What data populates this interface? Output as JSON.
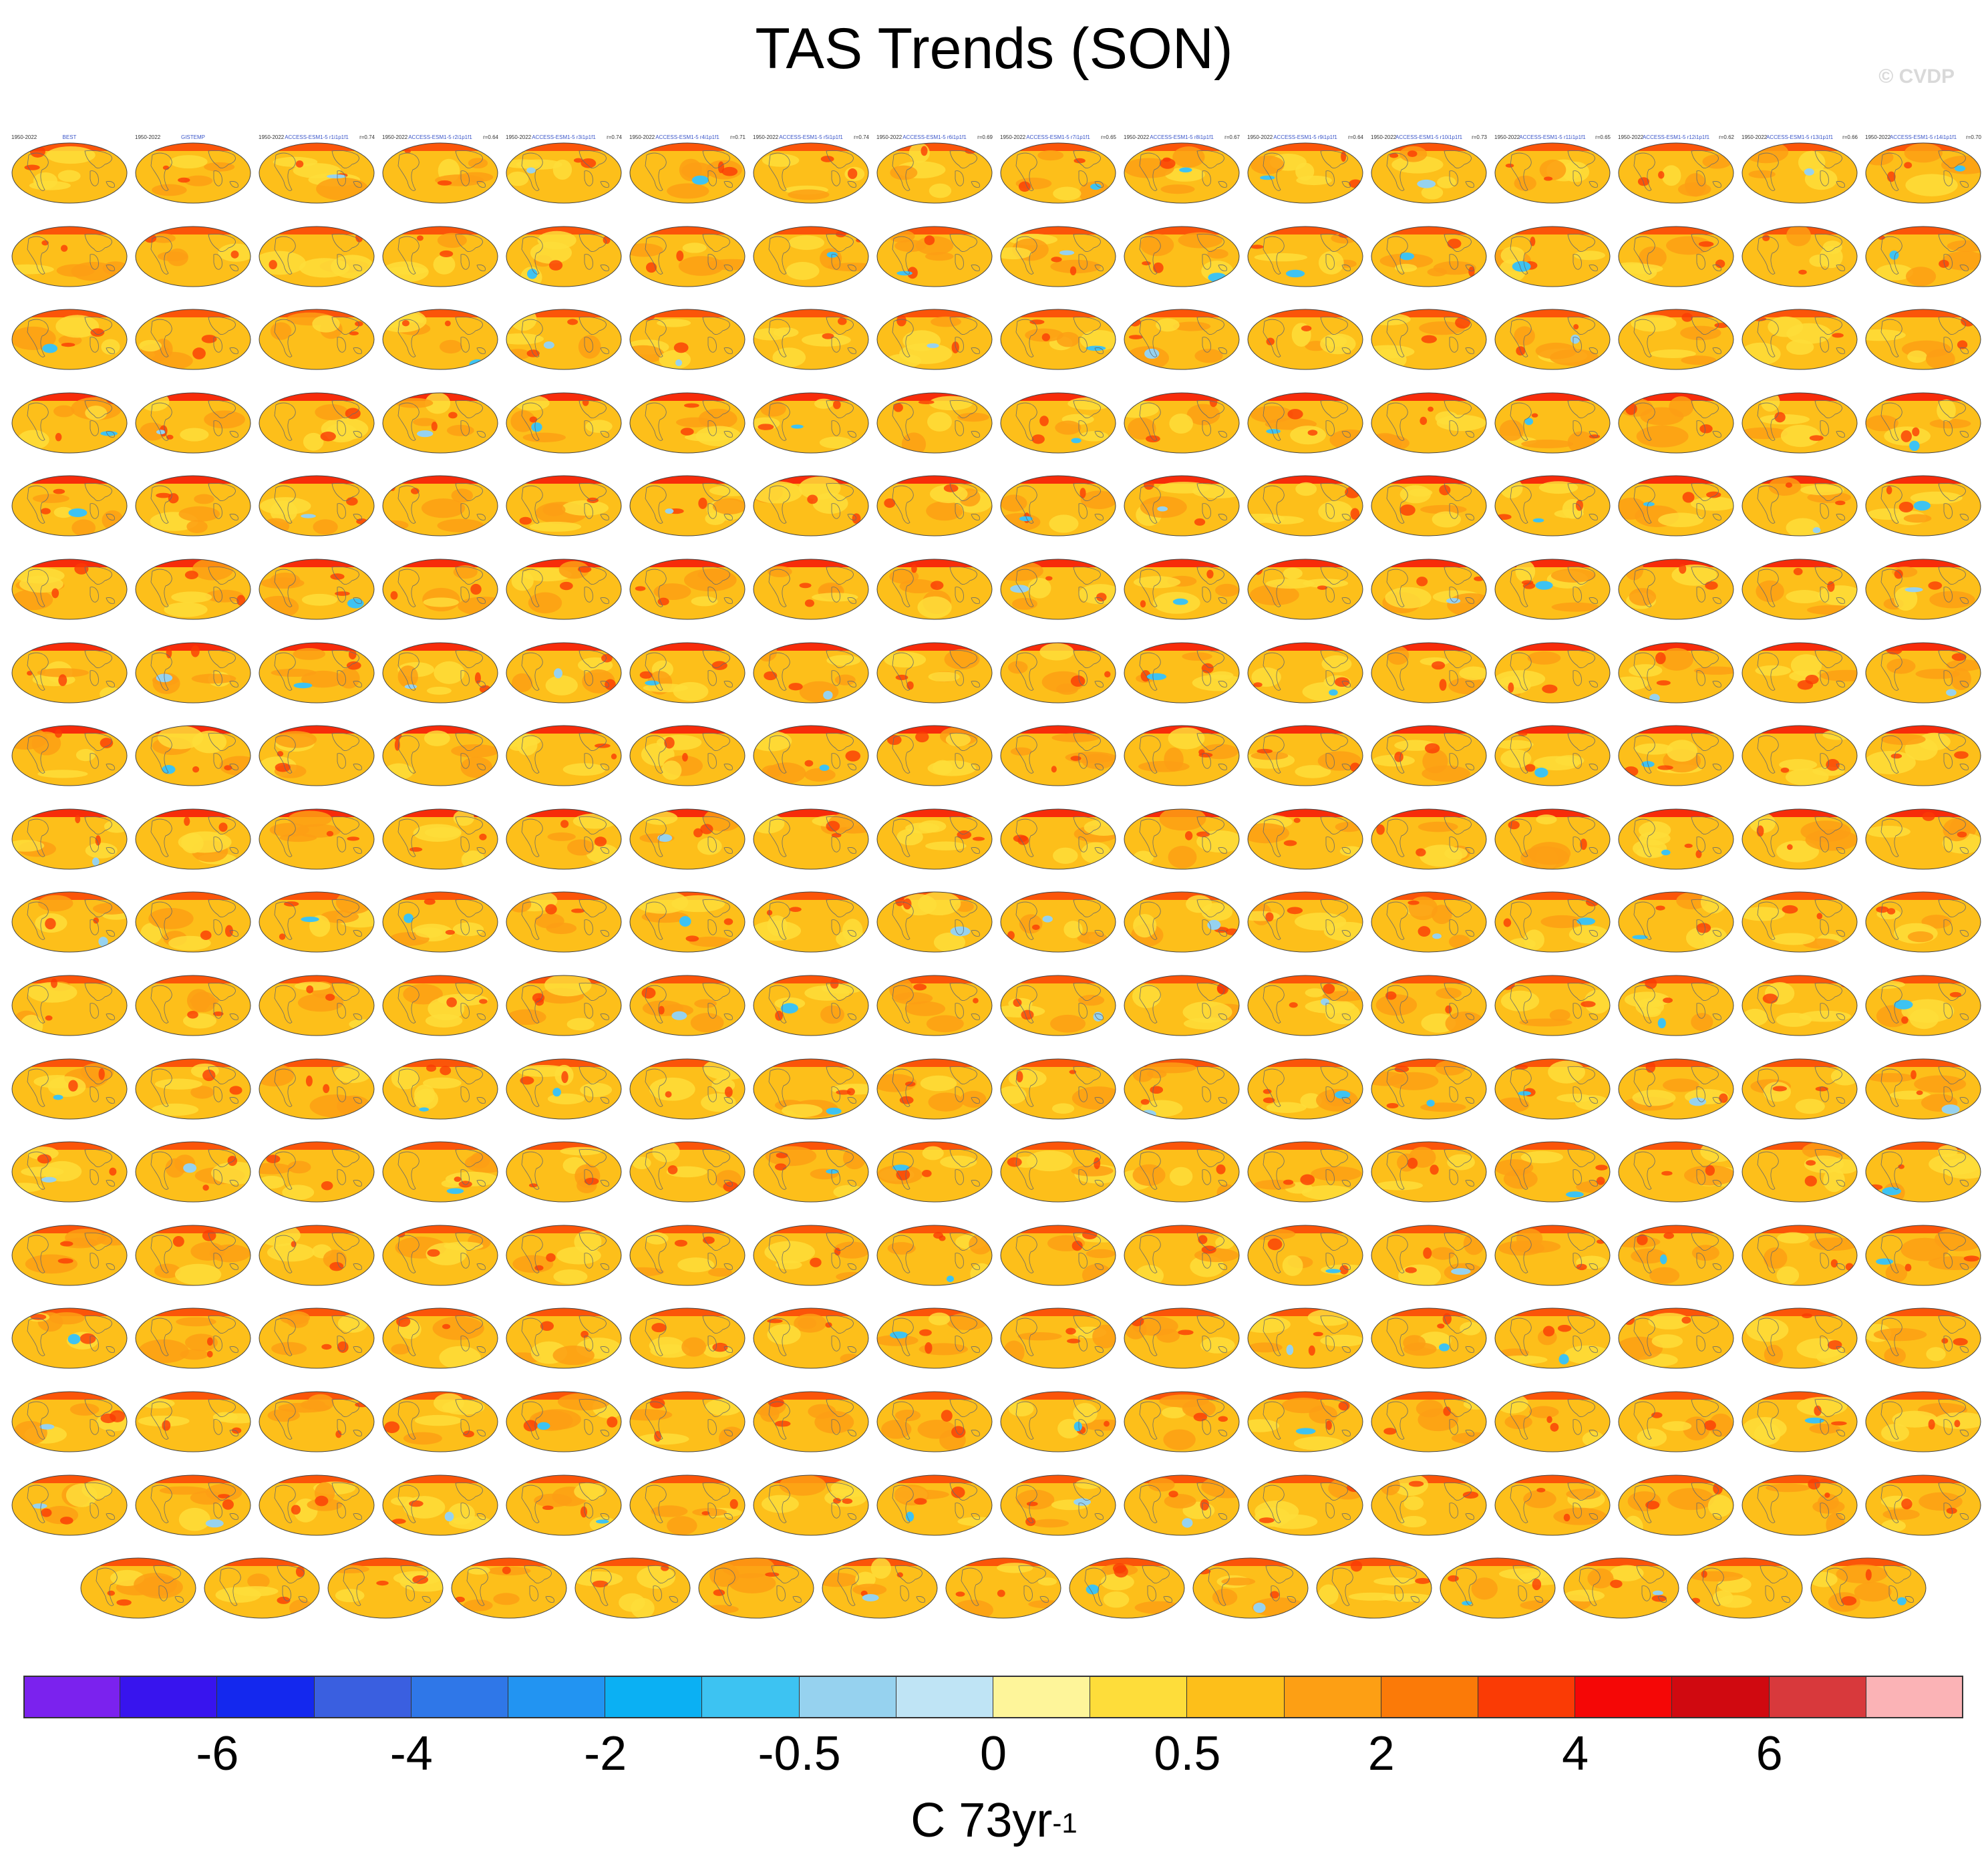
{
  "chart_data": {
    "type": "heatmap",
    "title": "TAS Trends (SON)",
    "watermark": "© CVDP",
    "colorbar": {
      "tick_labels": [
        "-6",
        "-4",
        "-2",
        "-0.5",
        "0",
        "0.5",
        "2",
        "4",
        "6"
      ],
      "units_base": "C 73yr",
      "units_exp": "-1",
      "colors": [
        "#7b22ee",
        "#3814ee",
        "#1428ee",
        "#3a5fe0",
        "#2f77e8",
        "#2294f2",
        "#0bb0f3",
        "#3dc3f2",
        "#96d2ef",
        "#bfe4f5",
        "#fef59a",
        "#fedd3a",
        "#fdbf1a",
        "#fd9f14",
        "#fb7a08",
        "#fa3b05",
        "#f50706",
        "#d00910",
        "#d8393c",
        "#fbb3b6"
      ]
    },
    "panels": {
      "rows": [
        16,
        16,
        16,
        16,
        16,
        16,
        16,
        16,
        16,
        16,
        16,
        16,
        16,
        16,
        16,
        16,
        16,
        15
      ],
      "labels": [
        {
          "years": "1950-2022",
          "name": "BEST",
          "r": ""
        },
        {
          "years": "1950-2022",
          "name": "GISTEMP",
          "r": ""
        },
        {
          "years": "1950-2022",
          "name": "ACCESS-ESM1-5 r1i1p1f1",
          "r": "r=0.74"
        },
        {
          "years": "1950-2022",
          "name": "ACCESS-ESM1-5 r2i1p1f1",
          "r": "r=0.64"
        },
        {
          "years": "1950-2022",
          "name": "ACCESS-ESM1-5 r3i1p1f1",
          "r": "r=0.74"
        },
        {
          "years": "1950-2022",
          "name": "ACCESS-ESM1-5 r4i1p1f1",
          "r": "r=0.71"
        },
        {
          "years": "1950-2022",
          "name": "ACCESS-ESM1-5 r5i1p1f1",
          "r": "r=0.74"
        },
        {
          "years": "1950-2022",
          "name": "ACCESS-ESM1-5 r6i1p1f1",
          "r": "r=0.69"
        },
        {
          "years": "1950-2022",
          "name": "ACCESS-ESM1-5 r7i1p1f1",
          "r": "r=0.65"
        },
        {
          "years": "1950-2022",
          "name": "ACCESS-ESM1-5 r8i1p1f1",
          "r": "r=0.67"
        },
        {
          "years": "1950-2022",
          "name": "ACCESS-ESM1-5 r9i1p1f1",
          "r": "r=0.64"
        },
        {
          "years": "1950-2022",
          "name": "ACCESS-ESM1-5 r10i1p1f1",
          "r": "r=0.73"
        },
        {
          "years": "1950-2022",
          "name": "ACCESS-ESM1-5 r11i1p1f1",
          "r": "r=0.65"
        },
        {
          "years": "1950-2022",
          "name": "ACCESS-ESM1-5 r12i1p1f1",
          "r": "r=0.62"
        },
        {
          "years": "1950-2022",
          "name": "ACCESS-ESM1-5 r13i1p1f1",
          "r": "r=0.66"
        },
        {
          "years": "1950-2022",
          "name": "ACCESS-ESM1-5 r14i1p1f1",
          "r": "r=0.70"
        }
      ],
      "default_label": {
        "years": "1950-2022",
        "name": "",
        "r": ""
      }
    }
  }
}
